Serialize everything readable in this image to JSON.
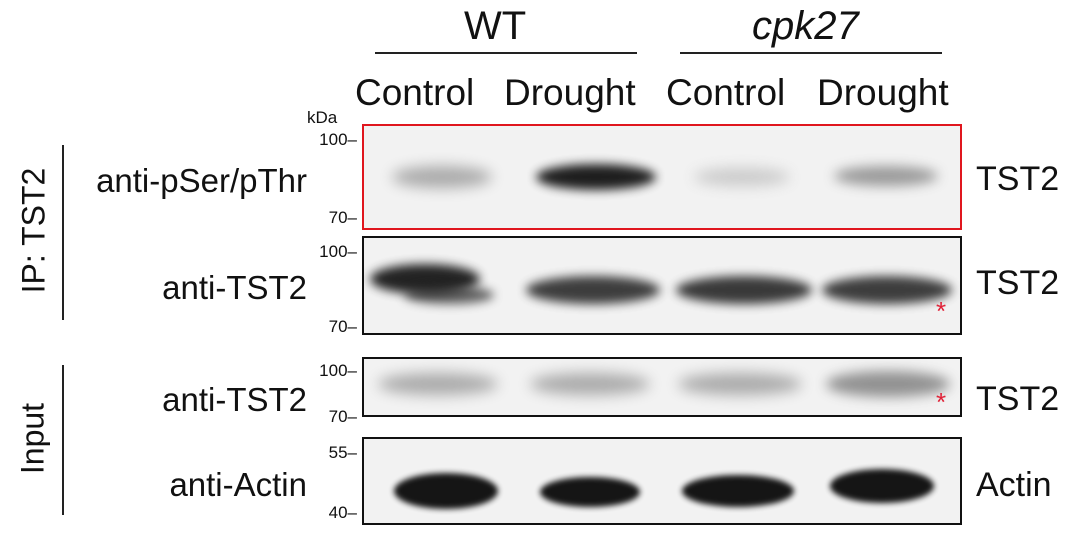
{
  "groups": [
    {
      "label": "WT",
      "italic": false
    },
    {
      "label": "cpk27",
      "italic": true
    }
  ],
  "conditions": [
    "Control",
    "Drought",
    "Control",
    "Drought"
  ],
  "mw_unit": "kDa",
  "sections": {
    "ip": "IP: TST2",
    "input": "Input"
  },
  "panels": [
    {
      "antibody": "anti-pSer/pThr",
      "target": "TST2",
      "mw_top": "100",
      "mw_bottom": "70",
      "highlight": true,
      "asterisk": ""
    },
    {
      "antibody": "anti-TST2",
      "target": "TST2",
      "mw_top": "100",
      "mw_bottom": "70",
      "highlight": false,
      "asterisk": "*"
    },
    {
      "antibody": "anti-TST2",
      "target": "TST2",
      "mw_top": "100",
      "mw_bottom": "70",
      "highlight": false,
      "asterisk": "*"
    },
    {
      "antibody": "anti-Actin",
      "target": "Actin",
      "mw_top": "55",
      "mw_bottom": "40",
      "highlight": false,
      "asterisk": ""
    }
  ],
  "colors": {
    "highlight_border": "#e0161e",
    "asterisk": "#e02238",
    "band": "#0d0d0d"
  }
}
